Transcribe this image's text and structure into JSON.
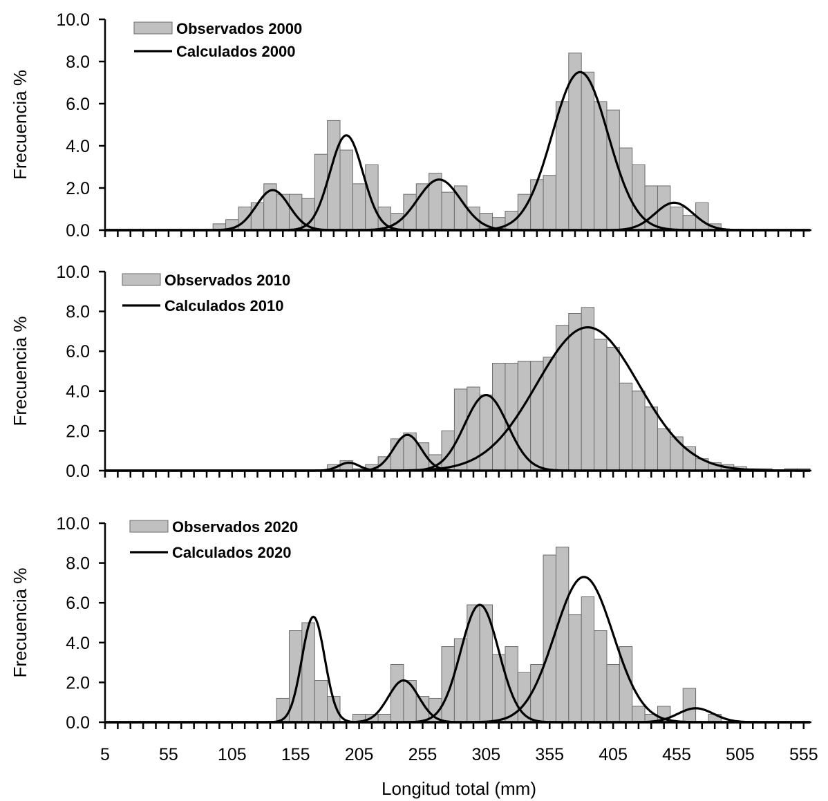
{
  "chart_data": [
    {
      "type": "bar",
      "panel": "2000",
      "ylabel": "Frecuencia %",
      "ylim": [
        0,
        10
      ],
      "yticks": [
        "0.0",
        "2.0",
        "4.0",
        "6.0",
        "8.0",
        "10.0"
      ],
      "xlim": [
        5,
        560
      ],
      "bin_width": 10,
      "legend": {
        "observed": "Observados 2000",
        "fitted": "Calculados 2000",
        "placement": "top-left"
      },
      "observed": [
        {
          "x": 95,
          "y": 0.3
        },
        {
          "x": 105,
          "y": 0.5
        },
        {
          "x": 115,
          "y": 1.1
        },
        {
          "x": 125,
          "y": 1.3
        },
        {
          "x": 135,
          "y": 2.2
        },
        {
          "x": 145,
          "y": 1.7
        },
        {
          "x": 155,
          "y": 1.7
        },
        {
          "x": 165,
          "y": 1.5
        },
        {
          "x": 175,
          "y": 3.6
        },
        {
          "x": 185,
          "y": 5.2
        },
        {
          "x": 195,
          "y": 3.8
        },
        {
          "x": 205,
          "y": 2.2
        },
        {
          "x": 215,
          "y": 3.1
        },
        {
          "x": 225,
          "y": 1.1
        },
        {
          "x": 235,
          "y": 0.8
        },
        {
          "x": 245,
          "y": 1.7
        },
        {
          "x": 255,
          "y": 2.2
        },
        {
          "x": 265,
          "y": 2.7
        },
        {
          "x": 275,
          "y": 1.8
        },
        {
          "x": 285,
          "y": 2.1
        },
        {
          "x": 295,
          "y": 1.1
        },
        {
          "x": 305,
          "y": 0.8
        },
        {
          "x": 315,
          "y": 0.6
        },
        {
          "x": 325,
          "y": 0.9
        },
        {
          "x": 335,
          "y": 1.7
        },
        {
          "x": 345,
          "y": 2.4
        },
        {
          "x": 355,
          "y": 2.6
        },
        {
          "x": 365,
          "y": 6.1
        },
        {
          "x": 375,
          "y": 8.4
        },
        {
          "x": 385,
          "y": 7.5
        },
        {
          "x": 395,
          "y": 6.1
        },
        {
          "x": 405,
          "y": 5.7
        },
        {
          "x": 415,
          "y": 3.9
        },
        {
          "x": 425,
          "y": 3.1
        },
        {
          "x": 435,
          "y": 2.1
        },
        {
          "x": 445,
          "y": 2.1
        },
        {
          "x": 455,
          "y": 1.1
        },
        {
          "x": 465,
          "y": 0.7
        },
        {
          "x": 475,
          "y": 1.3
        },
        {
          "x": 485,
          "y": 0.3
        }
      ],
      "fitted_components": [
        {
          "mean": 137,
          "sd": 13,
          "peak": 1.9
        },
        {
          "mean": 195,
          "sd": 13,
          "peak": 4.5
        },
        {
          "mean": 268,
          "sd": 17,
          "peak": 2.4
        },
        {
          "mean": 379,
          "sd": 22,
          "peak": 7.5
        },
        {
          "mean": 453,
          "sd": 15,
          "peak": 1.3
        }
      ]
    },
    {
      "type": "bar",
      "panel": "2010",
      "ylabel": "Frecuencia %",
      "ylim": [
        0,
        10
      ],
      "yticks": [
        "0.0",
        "2.0",
        "4.0",
        "6.0",
        "8.0",
        "10.0"
      ],
      "xlim": [
        5,
        560
      ],
      "bin_width": 10,
      "legend": {
        "observed": "Observados 2010",
        "fitted": "Calculados 2010",
        "placement": "top-left"
      },
      "observed": [
        {
          "x": 185,
          "y": 0.3
        },
        {
          "x": 195,
          "y": 0.5
        },
        {
          "x": 205,
          "y": 0.1
        },
        {
          "x": 215,
          "y": 0.3
        },
        {
          "x": 225,
          "y": 0.7
        },
        {
          "x": 235,
          "y": 1.6
        },
        {
          "x": 245,
          "y": 1.9
        },
        {
          "x": 255,
          "y": 1.4
        },
        {
          "x": 265,
          "y": 0.8
        },
        {
          "x": 275,
          "y": 2.0
        },
        {
          "x": 285,
          "y": 4.1
        },
        {
          "x": 295,
          "y": 4.2
        },
        {
          "x": 305,
          "y": 3.8
        },
        {
          "x": 315,
          "y": 5.4
        },
        {
          "x": 325,
          "y": 5.4
        },
        {
          "x": 335,
          "y": 5.5
        },
        {
          "x": 345,
          "y": 5.5
        },
        {
          "x": 355,
          "y": 5.7
        },
        {
          "x": 365,
          "y": 7.3
        },
        {
          "x": 375,
          "y": 7.9
        },
        {
          "x": 385,
          "y": 8.2
        },
        {
          "x": 395,
          "y": 6.6
        },
        {
          "x": 405,
          "y": 6.2
        },
        {
          "x": 415,
          "y": 4.4
        },
        {
          "x": 425,
          "y": 4.0
        },
        {
          "x": 435,
          "y": 3.2
        },
        {
          "x": 445,
          "y": 2.1
        },
        {
          "x": 455,
          "y": 1.7
        },
        {
          "x": 465,
          "y": 1.2
        },
        {
          "x": 475,
          "y": 0.6
        },
        {
          "x": 485,
          "y": 0.4
        },
        {
          "x": 495,
          "y": 0.3
        },
        {
          "x": 505,
          "y": 0.2
        },
        {
          "x": 515,
          "y": 0.1
        },
        {
          "x": 525,
          "y": 0.1
        },
        {
          "x": 545,
          "y": 0.1
        },
        {
          "x": 555,
          "y": 0.1
        }
      ],
      "fitted_components": [
        {
          "mean": 197,
          "sd": 8,
          "peak": 0.4
        },
        {
          "mean": 243,
          "sd": 11,
          "peak": 1.8
        },
        {
          "mean": 305,
          "sd": 17,
          "peak": 3.8
        },
        {
          "mean": 385,
          "sd": 40,
          "peak": 7.2
        }
      ]
    },
    {
      "type": "bar",
      "panel": "2020",
      "xlabel": "Longitud total (mm)",
      "ylabel": "Frecuencia %",
      "ylim": [
        0,
        10
      ],
      "yticks": [
        "0.0",
        "2.0",
        "4.0",
        "6.0",
        "8.0",
        "10.0"
      ],
      "xlim": [
        5,
        560
      ],
      "xticks": [
        "5",
        "55",
        "105",
        "155",
        "205",
        "255",
        "305",
        "355",
        "405",
        "455",
        "505",
        "555"
      ],
      "bin_width": 10,
      "legend": {
        "observed": "Observados 2020",
        "fitted": "Calculados 2020",
        "placement": "top-left"
      },
      "observed": [
        {
          "x": 145,
          "y": 1.2
        },
        {
          "x": 155,
          "y": 4.6
        },
        {
          "x": 165,
          "y": 5.0
        },
        {
          "x": 175,
          "y": 2.1
        },
        {
          "x": 185,
          "y": 1.3
        },
        {
          "x": 205,
          "y": 0.4
        },
        {
          "x": 215,
          "y": 0.4
        },
        {
          "x": 225,
          "y": 0.4
        },
        {
          "x": 235,
          "y": 2.9
        },
        {
          "x": 245,
          "y": 2.1
        },
        {
          "x": 255,
          "y": 1.3
        },
        {
          "x": 265,
          "y": 1.2
        },
        {
          "x": 275,
          "y": 3.8
        },
        {
          "x": 285,
          "y": 4.2
        },
        {
          "x": 295,
          "y": 5.9
        },
        {
          "x": 305,
          "y": 5.9
        },
        {
          "x": 315,
          "y": 3.4
        },
        {
          "x": 325,
          "y": 3.8
        },
        {
          "x": 335,
          "y": 2.5
        },
        {
          "x": 345,
          "y": 2.9
        },
        {
          "x": 355,
          "y": 8.4
        },
        {
          "x": 365,
          "y": 8.8
        },
        {
          "x": 375,
          "y": 5.4
        },
        {
          "x": 385,
          "y": 6.3
        },
        {
          "x": 395,
          "y": 4.6
        },
        {
          "x": 405,
          "y": 2.9
        },
        {
          "x": 415,
          "y": 3.8
        },
        {
          "x": 425,
          "y": 0.8
        },
        {
          "x": 435,
          "y": 0.4
        },
        {
          "x": 445,
          "y": 0.8
        },
        {
          "x": 465,
          "y": 1.7
        },
        {
          "x": 485,
          "y": 0.4
        }
      ],
      "fitted_components": [
        {
          "mean": 169,
          "sd": 9,
          "peak": 5.3
        },
        {
          "mean": 240,
          "sd": 12,
          "peak": 2.1
        },
        {
          "mean": 300,
          "sd": 15,
          "peak": 5.9
        },
        {
          "mean": 382,
          "sd": 23,
          "peak": 7.3
        },
        {
          "mean": 470,
          "sd": 14,
          "peak": 0.7
        }
      ]
    }
  ]
}
